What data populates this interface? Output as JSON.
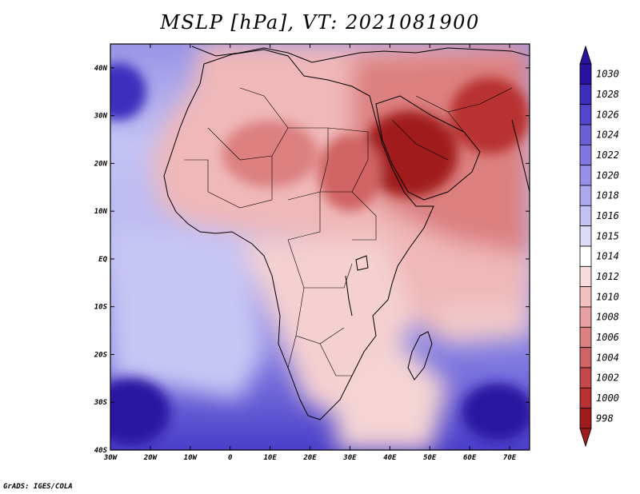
{
  "title": "MSLP [hPa], VT: 2021081900",
  "credit": "GrADS: IGES/COLA",
  "lat_ticks": [
    "40N",
    "30N",
    "20N",
    "10N",
    "EQ",
    "10S",
    "20S",
    "30S",
    "40S"
  ],
  "lon_ticks": [
    "30W",
    "20W",
    "10W",
    "0",
    "10E",
    "20E",
    "30E",
    "40E",
    "50E",
    "60E",
    "70E"
  ],
  "map_extent": {
    "lon": [
      -30,
      75
    ],
    "lat": [
      -40,
      45
    ]
  },
  "colorbar": {
    "levels": [
      "1030",
      "1028",
      "1026",
      "1024",
      "1022",
      "1020",
      "1018",
      "1016",
      "1015",
      "1014",
      "1012",
      "1010",
      "1008",
      "1006",
      "1004",
      "1002",
      "1000",
      "998"
    ],
    "colors": [
      "#2a12a0",
      "#3d2fbd",
      "#5246cc",
      "#6a60d8",
      "#8078e0",
      "#9690e8",
      "#aca8ee",
      "#c4c2f4",
      "#dcdcf8",
      "#ffffff",
      "#f8dcdc",
      "#f2c0c0",
      "#e8a0a0",
      "#dc8080",
      "#d06464",
      "#c44848",
      "#b83232",
      "#a01c1c"
    ]
  },
  "pressure_fields": [
    {
      "name": "azores-high",
      "lon": -28,
      "lat": 35,
      "rx": 7,
      "ry": 6,
      "color": "#3d2fbd"
    },
    {
      "name": "south-atlantic-high",
      "lon": -25,
      "lat": -32,
      "rx": 10,
      "ry": 7,
      "color": "#2a12a0"
    },
    {
      "name": "mascarene-high",
      "lon": 67,
      "lat": -32,
      "rx": 9,
      "ry": 6,
      "color": "#2a12a0"
    },
    {
      "name": "arabian-low",
      "lon": 45,
      "lat": 22,
      "rx": 12,
      "ry": 9,
      "color": "#a01c1c"
    },
    {
      "name": "iran-low",
      "lon": 65,
      "lat": 30,
      "rx": 10,
      "ry": 8,
      "color": "#b83232"
    },
    {
      "name": "sahara-heat-low",
      "lon": 10,
      "lat": 22,
      "rx": 12,
      "ry": 7,
      "color": "#dc8080"
    },
    {
      "name": "nile-low",
      "lon": 30,
      "lat": 18,
      "rx": 8,
      "ry": 8,
      "color": "#d06464"
    }
  ]
}
